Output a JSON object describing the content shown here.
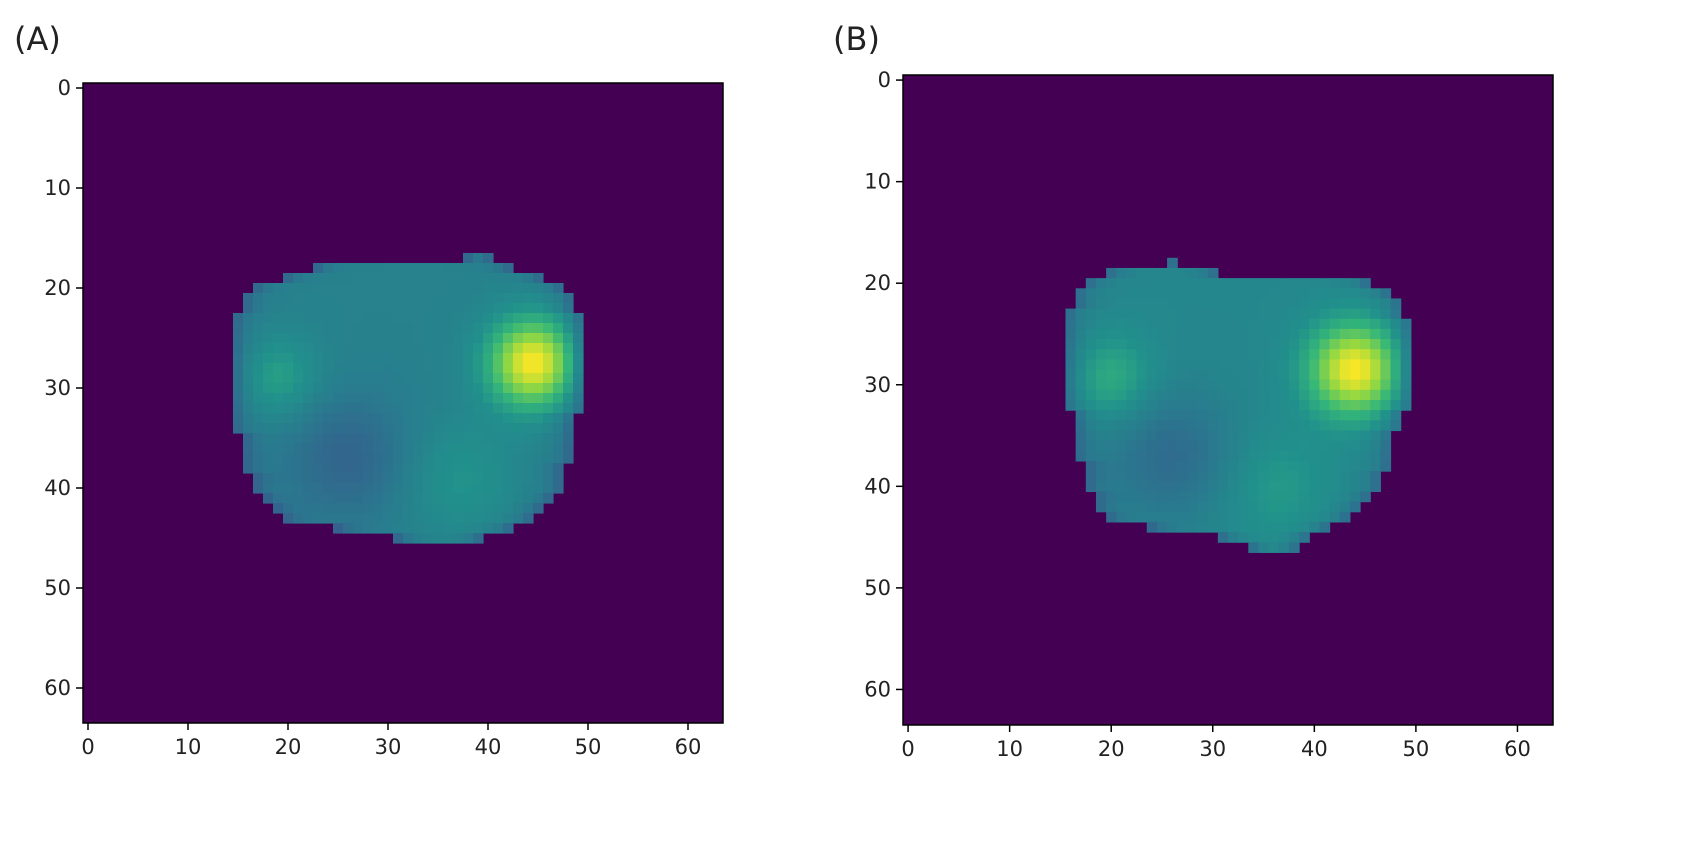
{
  "chart_data": [
    {
      "type": "heatmap",
      "panel_label": "(A)",
      "grid_size": [
        64,
        64
      ],
      "xlim": [
        -0.5,
        63.5
      ],
      "ylim": [
        63.5,
        -0.5
      ],
      "xticks": [
        0,
        10,
        20,
        30,
        40,
        50,
        60
      ],
      "yticks": [
        0,
        10,
        20,
        30,
        40,
        50,
        60
      ],
      "colormap": "viridis",
      "background_value": 0.0,
      "shape": {
        "rows": [
          {
            "y": 17,
            "x0": 38,
            "x1": 40
          },
          {
            "y": 18,
            "x0": 23,
            "x1": 42
          },
          {
            "y": 19,
            "x0": 20,
            "x1": 45
          },
          {
            "y": 20,
            "x0": 17,
            "x1": 47
          },
          {
            "y": 21,
            "x0": 16,
            "x1": 48
          },
          {
            "y": 22,
            "x0": 16,
            "x1": 48
          },
          {
            "y": 23,
            "x0": 15,
            "x1": 49
          },
          {
            "y": 24,
            "x0": 15,
            "x1": 49
          },
          {
            "y": 25,
            "x0": 15,
            "x1": 49
          },
          {
            "y": 26,
            "x0": 15,
            "x1": 49
          },
          {
            "y": 27,
            "x0": 15,
            "x1": 49
          },
          {
            "y": 28,
            "x0": 15,
            "x1": 49
          },
          {
            "y": 29,
            "x0": 15,
            "x1": 49
          },
          {
            "y": 30,
            "x0": 15,
            "x1": 49
          },
          {
            "y": 31,
            "x0": 15,
            "x1": 49
          },
          {
            "y": 32,
            "x0": 15,
            "x1": 49
          },
          {
            "y": 33,
            "x0": 15,
            "x1": 48
          },
          {
            "y": 34,
            "x0": 15,
            "x1": 48
          },
          {
            "y": 35,
            "x0": 16,
            "x1": 48
          },
          {
            "y": 36,
            "x0": 16,
            "x1": 48
          },
          {
            "y": 37,
            "x0": 16,
            "x1": 48
          },
          {
            "y": 38,
            "x0": 16,
            "x1": 47
          },
          {
            "y": 39,
            "x0": 17,
            "x1": 47
          },
          {
            "y": 40,
            "x0": 17,
            "x1": 47
          },
          {
            "y": 41,
            "x0": 18,
            "x1": 46
          },
          {
            "y": 42,
            "x0": 19,
            "x1": 45
          },
          {
            "y": 43,
            "x0": 20,
            "x1": 44
          },
          {
            "y": 44,
            "x0": 25,
            "x1": 42
          },
          {
            "y": 45,
            "x0": 31,
            "x1": 39
          }
        ],
        "intensity_peaks": [
          {
            "x": 44.5,
            "y": 27.5,
            "value": 1.0,
            "radius": 3.2
          },
          {
            "x": 19,
            "y": 29,
            "value": 0.68,
            "radius": 3
          },
          {
            "x": 37,
            "y": 39,
            "value": 0.64,
            "radius": 4
          }
        ],
        "base_value": 0.55
      }
    },
    {
      "type": "heatmap",
      "panel_label": "(B)",
      "grid_size": [
        64,
        64
      ],
      "xlim": [
        -0.5,
        63.5
      ],
      "ylim": [
        63.5,
        -0.5
      ],
      "xticks": [
        0,
        10,
        20,
        30,
        40,
        50,
        60
      ],
      "yticks": [
        0,
        10,
        20,
        30,
        40,
        50,
        60
      ],
      "colormap": "viridis",
      "background_value": 0.0,
      "shape": {
        "rows": [
          {
            "y": 18,
            "x0": 26,
            "x1": 26
          },
          {
            "y": 19,
            "x0": 20,
            "x1": 30
          },
          {
            "y": 20,
            "x0": 18,
            "x1": 45
          },
          {
            "y": 21,
            "x0": 17,
            "x1": 47
          },
          {
            "y": 22,
            "x0": 17,
            "x1": 48
          },
          {
            "y": 23,
            "x0": 16,
            "x1": 48
          },
          {
            "y": 24,
            "x0": 16,
            "x1": 49
          },
          {
            "y": 25,
            "x0": 16,
            "x1": 49
          },
          {
            "y": 26,
            "x0": 16,
            "x1": 49
          },
          {
            "y": 27,
            "x0": 16,
            "x1": 49
          },
          {
            "y": 28,
            "x0": 16,
            "x1": 49
          },
          {
            "y": 29,
            "x0": 16,
            "x1": 49
          },
          {
            "y": 30,
            "x0": 16,
            "x1": 49
          },
          {
            "y": 31,
            "x0": 16,
            "x1": 49
          },
          {
            "y": 32,
            "x0": 16,
            "x1": 49
          },
          {
            "y": 33,
            "x0": 17,
            "x1": 48
          },
          {
            "y": 34,
            "x0": 17,
            "x1": 48
          },
          {
            "y": 35,
            "x0": 17,
            "x1": 47
          },
          {
            "y": 36,
            "x0": 17,
            "x1": 47
          },
          {
            "y": 37,
            "x0": 17,
            "x1": 47
          },
          {
            "y": 38,
            "x0": 18,
            "x1": 47
          },
          {
            "y": 39,
            "x0": 18,
            "x1": 46
          },
          {
            "y": 40,
            "x0": 18,
            "x1": 46
          },
          {
            "y": 41,
            "x0": 19,
            "x1": 45
          },
          {
            "y": 42,
            "x0": 19,
            "x1": 44
          },
          {
            "y": 43,
            "x0": 20,
            "x1": 43
          },
          {
            "y": 44,
            "x0": 24,
            "x1": 41
          },
          {
            "y": 45,
            "x0": 31,
            "x1": 39
          },
          {
            "y": 46,
            "x0": 34,
            "x1": 38
          }
        ],
        "intensity_peaks": [
          {
            "x": 44,
            "y": 28.5,
            "value": 1.0,
            "radius": 3.2
          },
          {
            "x": 20,
            "y": 29.5,
            "value": 0.72,
            "radius": 3
          },
          {
            "x": 36,
            "y": 40,
            "value": 0.66,
            "radius": 4
          }
        ],
        "base_value": 0.58
      }
    }
  ]
}
